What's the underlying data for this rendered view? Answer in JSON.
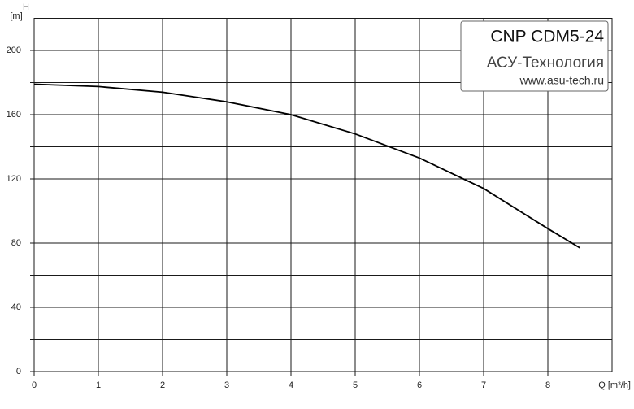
{
  "chart_data": {
    "type": "line",
    "title": "CNP CDM5-24",
    "subtitle": "АСУ-Технология",
    "source": "www.asu-tech.ru",
    "y_label": "H",
    "y_unit": "[m]",
    "x_label": "Q [m³/h]",
    "x": [
      0,
      1,
      2,
      3,
      4,
      5,
      6,
      7,
      8,
      8.5
    ],
    "values": [
      179,
      177.5,
      174,
      168,
      160,
      148,
      133,
      114,
      89,
      77
    ],
    "color": "#000000",
    "xlim": [
      0,
      9
    ],
    "xticks": [
      0,
      1,
      2,
      3,
      4,
      5,
      6,
      7,
      8
    ],
    "ylim": [
      0,
      220
    ],
    "yticks": [
      0,
      40,
      80,
      120,
      160,
      200
    ],
    "y_minor_ticks": [
      20,
      60,
      100,
      140,
      180
    ],
    "grid": true
  }
}
